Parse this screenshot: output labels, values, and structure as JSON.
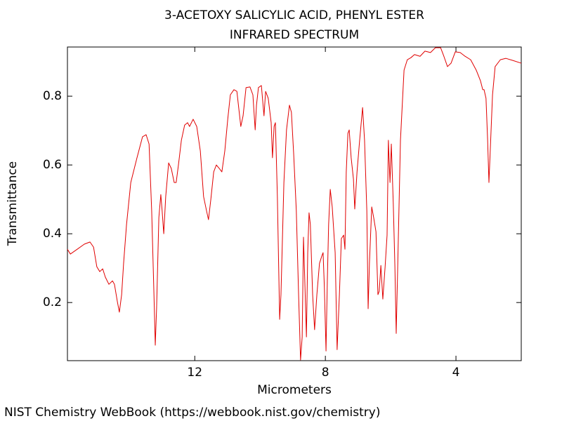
{
  "chart_data": {
    "type": "line",
    "title": "3-ACETOXY SALICYLIC ACID, PHENYL ESTER",
    "subtitle": "INFRARED SPECTRUM",
    "x_label": "Micrometers",
    "y_label": "Transmittance",
    "source": "NIST Chemistry WebBook (https://webbook.nist.gov/chemistry)",
    "xlim": [
      15.9,
      2.0
    ],
    "ylim": [
      0.031,
      0.943
    ],
    "xticks": [
      12,
      8,
      4
    ],
    "yticks": [
      0.2,
      0.4,
      0.6,
      0.8
    ],
    "grid": false,
    "x": [
      15.9,
      15.81,
      15.6,
      15.38,
      15.21,
      15.1,
      15.0,
      14.91,
      14.82,
      14.74,
      14.63,
      14.52,
      14.46,
      14.37,
      14.31,
      14.24,
      14.18,
      14.09,
      13.96,
      13.77,
      13.6,
      13.49,
      13.4,
      13.32,
      13.25,
      13.21,
      13.17,
      13.1,
      13.04,
      13.0,
      12.95,
      12.89,
      12.8,
      12.72,
      12.63,
      12.57,
      12.5,
      12.41,
      12.31,
      12.22,
      12.16,
      12.05,
      11.94,
      11.83,
      11.73,
      11.64,
      11.58,
      11.51,
      11.42,
      11.34,
      11.25,
      11.17,
      11.08,
      10.99,
      10.91,
      10.8,
      10.71,
      10.65,
      10.59,
      10.52,
      10.43,
      10.31,
      10.22,
      10.15,
      10.11,
      10.05,
      9.96,
      9.88,
      9.83,
      9.75,
      9.66,
      9.62,
      9.57,
      9.53,
      9.47,
      9.4,
      9.36,
      9.27,
      9.19,
      9.1,
      9.04,
      8.97,
      8.89,
      8.82,
      8.76,
      8.71,
      8.67,
      8.63,
      8.58,
      8.54,
      8.5,
      8.46,
      8.39,
      8.33,
      8.26,
      8.18,
      8.11,
      8.07,
      8.03,
      7.98,
      7.94,
      7.9,
      7.85,
      7.79,
      7.7,
      7.64,
      7.57,
      7.51,
      7.44,
      7.4,
      7.36,
      7.31,
      7.27,
      7.21,
      7.14,
      7.1,
      7.03,
      6.95,
      6.86,
      6.8,
      6.73,
      6.69,
      6.65,
      6.58,
      6.52,
      6.45,
      6.39,
      6.35,
      6.3,
      6.24,
      6.17,
      6.11,
      6.07,
      6.02,
      5.98,
      5.92,
      5.87,
      5.83,
      5.77,
      5.7,
      5.59,
      5.49,
      5.38,
      5.27,
      5.1,
      4.95,
      4.78,
      4.63,
      4.47,
      4.37,
      4.26,
      4.15,
      4.02,
      3.87,
      3.72,
      3.55,
      3.38,
      3.25,
      3.18,
      3.14,
      3.08,
      3.03,
      2.99,
      2.95,
      2.88,
      2.8,
      2.64,
      2.47,
      2.26,
      2.0
    ],
    "series": [
      {
        "name": "Transmittance",
        "color": "#e00000",
        "values": [
          0.355,
          0.341,
          0.355,
          0.37,
          0.376,
          0.361,
          0.304,
          0.29,
          0.298,
          0.274,
          0.253,
          0.263,
          0.253,
          0.202,
          0.172,
          0.223,
          0.314,
          0.427,
          0.549,
          0.621,
          0.682,
          0.688,
          0.661,
          0.467,
          0.223,
          0.076,
          0.182,
          0.447,
          0.514,
          0.467,
          0.4,
          0.508,
          0.606,
          0.59,
          0.549,
          0.549,
          0.6,
          0.672,
          0.716,
          0.723,
          0.712,
          0.733,
          0.712,
          0.641,
          0.508,
          0.467,
          0.441,
          0.498,
          0.58,
          0.6,
          0.59,
          0.58,
          0.641,
          0.733,
          0.804,
          0.819,
          0.814,
          0.763,
          0.712,
          0.743,
          0.825,
          0.827,
          0.804,
          0.702,
          0.774,
          0.825,
          0.831,
          0.743,
          0.814,
          0.794,
          0.723,
          0.621,
          0.712,
          0.723,
          0.508,
          0.151,
          0.223,
          0.549,
          0.702,
          0.774,
          0.753,
          0.631,
          0.467,
          0.223,
          0.033,
          0.1,
          0.39,
          0.263,
          0.1,
          0.345,
          0.461,
          0.427,
          0.223,
          0.121,
          0.223,
          0.314,
          0.335,
          0.345,
          0.243,
          0.059,
          0.263,
          0.427,
          0.529,
          0.478,
          0.345,
          0.063,
          0.223,
          0.386,
          0.396,
          0.355,
          0.58,
          0.692,
          0.702,
          0.621,
          0.559,
          0.472,
          0.58,
          0.672,
          0.767,
          0.672,
          0.467,
          0.182,
          0.314,
          0.478,
          0.447,
          0.406,
          0.223,
          0.233,
          0.308,
          0.21,
          0.304,
          0.396,
          0.672,
          0.549,
          0.661,
          0.488,
          0.304,
          0.11,
          0.365,
          0.672,
          0.876,
          0.906,
          0.912,
          0.921,
          0.916,
          0.931,
          0.927,
          0.941,
          0.941,
          0.916,
          0.886,
          0.896,
          0.929,
          0.927,
          0.916,
          0.906,
          0.876,
          0.845,
          0.819,
          0.819,
          0.794,
          0.672,
          0.549,
          0.641,
          0.804,
          0.886,
          0.906,
          0.91,
          0.904,
          0.896
        ]
      }
    ]
  }
}
